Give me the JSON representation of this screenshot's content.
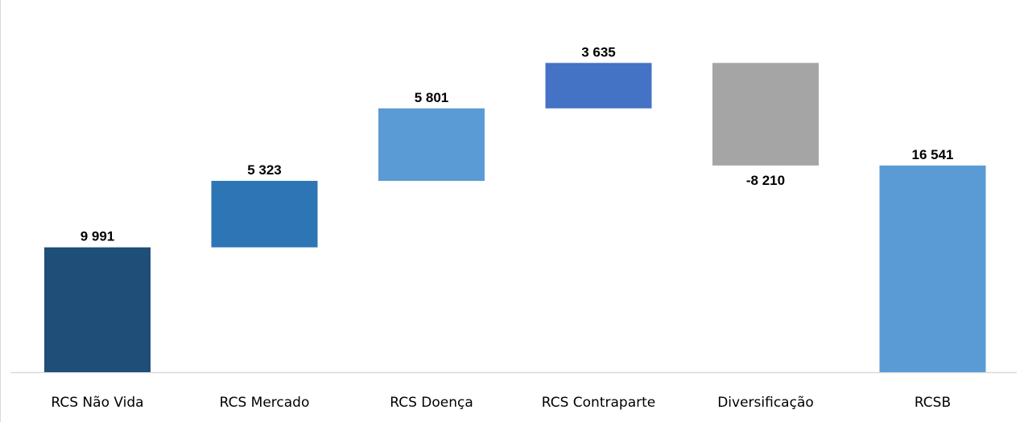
{
  "chart_data": {
    "type": "bar",
    "subtype": "waterfall",
    "categories": [
      "RCS Não Vida",
      "RCS Mercado",
      "RCS Doença",
      "RCS Contraparte",
      "Diversificação",
      "RCSB"
    ],
    "values": [
      9991,
      5323,
      5801,
      3635,
      -8210,
      16541
    ],
    "data_labels": [
      "9 991",
      "5 323",
      "5 801",
      "3 635",
      "-8 210",
      "16 541"
    ],
    "bar_kinds": [
      "total",
      "increase",
      "increase",
      "increase",
      "decrease",
      "total"
    ],
    "colors": [
      "#1f4e79",
      "#2e75b6",
      "#5b9bd5",
      "#4472c4",
      "#a5a5a5",
      "#5b9bd5"
    ],
    "title": "",
    "xlabel": "",
    "ylabel": "",
    "ylim": [
      0,
      25800
    ],
    "grid": false,
    "legend": "none"
  }
}
